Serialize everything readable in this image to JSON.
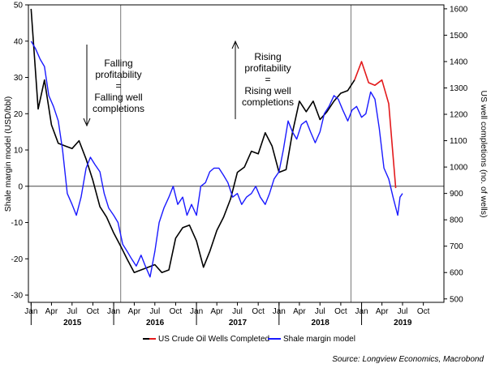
{
  "chart_data": {
    "type": "line",
    "x_range": [
      "2014-12-20",
      "2019-12-31"
    ],
    "y_left": {
      "label": "Shale margin model (USD/bbl)",
      "range": [
        -32,
        50
      ],
      "ticks": [
        -30,
        -20,
        -10,
        0,
        10,
        20,
        30,
        40,
        50
      ]
    },
    "y_right": {
      "label": "US well completions (no. of wells)",
      "range": [
        487,
        1615
      ],
      "ticks": [
        500,
        600,
        700,
        800,
        900,
        1000,
        1100,
        1200,
        1300,
        1400,
        1500,
        1600
      ]
    },
    "month_ticks": [
      "Jan",
      "Apr",
      "Jul",
      "Oct",
      "Jan",
      "Apr",
      "Jul",
      "Oct",
      "Jan",
      "Apr",
      "Jul",
      "Oct",
      "Jan",
      "Apr",
      "Jul",
      "Oct",
      "Jan",
      "Apr",
      "Jul",
      "Oct"
    ],
    "year_labels": [
      "2015",
      "2016",
      "2017",
      "2018",
      "2019"
    ],
    "vertical_markers": [
      "2016-02-01",
      "2018-11-15"
    ],
    "annotations": [
      {
        "lines": [
          "Falling",
          "profitability",
          "=",
          "Falling well",
          "completions"
        ]
      },
      {
        "lines": [
          "Rising",
          "profitability",
          "=",
          "Rising well",
          "completions"
        ]
      }
    ],
    "series": [
      {
        "name": "US Crude Oil Wells Completed",
        "axis": "right",
        "color": "#000000",
        "x": [
          "2015-01-01",
          "2015-02-01",
          "2015-03-01",
          "2015-04-01",
          "2015-05-01",
          "2015-06-01",
          "2015-07-01",
          "2015-08-01",
          "2015-09-01",
          "2015-10-01",
          "2015-11-01",
          "2015-12-01",
          "2016-01-01",
          "2016-02-01",
          "2016-03-01",
          "2016-04-01",
          "2016-05-01",
          "2016-06-01",
          "2016-07-01",
          "2016-08-01",
          "2016-09-01",
          "2016-10-01",
          "2016-11-01",
          "2016-12-01",
          "2017-01-01",
          "2017-02-01",
          "2017-03-01",
          "2017-04-01",
          "2017-05-01",
          "2017-06-01",
          "2017-07-01",
          "2017-08-01",
          "2017-09-01",
          "2017-10-01",
          "2017-11-01",
          "2017-12-01",
          "2018-01-01",
          "2018-02-01",
          "2018-03-01",
          "2018-04-01",
          "2018-05-01",
          "2018-06-01",
          "2018-07-01",
          "2018-08-01",
          "2018-09-01",
          "2018-10-01",
          "2018-11-01",
          "2018-12-01"
        ],
        "y": [
          1600,
          1220,
          1330,
          1160,
          1090,
          1080,
          1070,
          1100,
          1030,
          950,
          850,
          810,
          750,
          700,
          650,
          600,
          610,
          620,
          630,
          600,
          610,
          730,
          770,
          780,
          720,
          620,
          680,
          760,
          810,
          880,
          980,
          1000,
          1060,
          1050,
          1130,
          1080,
          980,
          990,
          1130,
          1250,
          1210,
          1250,
          1180,
          1210,
          1250,
          1280,
          1290,
          1330
        ]
      },
      {
        "name": "US Crude Oil Wells Completed (recent)",
        "axis": "right",
        "color": "#e31a1c",
        "x": [
          "2018-12-01",
          "2019-01-01",
          "2019-02-01",
          "2019-03-01",
          "2019-04-01",
          "2019-05-01",
          "2019-06-01"
        ],
        "y": [
          1330,
          1400,
          1320,
          1310,
          1330,
          1240,
          920
        ]
      },
      {
        "name": "Shale margin model",
        "axis": "left",
        "color": "#1a1aff",
        "x": [
          "2015-01-01",
          "2015-01-20",
          "2015-02-10",
          "2015-03-01",
          "2015-03-20",
          "2015-04-10",
          "2015-05-01",
          "2015-05-20",
          "2015-06-10",
          "2015-07-01",
          "2015-07-20",
          "2015-08-10",
          "2015-09-01",
          "2015-09-20",
          "2015-10-10",
          "2015-11-01",
          "2015-11-20",
          "2015-12-10",
          "2016-01-01",
          "2016-01-20",
          "2016-02-10",
          "2016-03-01",
          "2016-03-20",
          "2016-04-10",
          "2016-05-01",
          "2016-05-20",
          "2016-06-10",
          "2016-07-01",
          "2016-07-20",
          "2016-08-10",
          "2016-09-01",
          "2016-09-20",
          "2016-10-10",
          "2016-11-01",
          "2016-11-20",
          "2016-12-10",
          "2017-01-01",
          "2017-01-20",
          "2017-02-10",
          "2017-03-01",
          "2017-03-20",
          "2017-04-10",
          "2017-05-01",
          "2017-05-20",
          "2017-06-10",
          "2017-07-01",
          "2017-07-20",
          "2017-08-10",
          "2017-09-01",
          "2017-09-20",
          "2017-10-10",
          "2017-11-01",
          "2017-11-20",
          "2017-12-10",
          "2018-01-01",
          "2018-01-20",
          "2018-02-10",
          "2018-03-01",
          "2018-03-20",
          "2018-04-10",
          "2018-05-01",
          "2018-05-20",
          "2018-06-10",
          "2018-07-01",
          "2018-07-20",
          "2018-08-10",
          "2018-09-01",
          "2018-09-20",
          "2018-10-10",
          "2018-11-01",
          "2018-11-20",
          "2018-12-10",
          "2019-01-01",
          "2019-01-20",
          "2019-02-10",
          "2019-03-01",
          "2019-03-20",
          "2019-04-10",
          "2019-05-01",
          "2019-05-20",
          "2019-06-10",
          "2019-06-20",
          "2019-07-01"
        ],
        "y": [
          40,
          38,
          35,
          33,
          25,
          22,
          18,
          10,
          -2,
          -5,
          -8,
          -3,
          5,
          8,
          6,
          4,
          -2,
          -6,
          -8,
          -10,
          -16,
          -18,
          -20,
          -22,
          -19,
          -22,
          -25,
          -18,
          -10,
          -6,
          -3,
          0,
          -5,
          -3,
          -8,
          -5,
          -8,
          0,
          1,
          4,
          5,
          5,
          3,
          1,
          -3,
          -2,
          -5,
          -3,
          -2,
          0,
          -3,
          -5,
          -2,
          2,
          4,
          10,
          18,
          15,
          13,
          17,
          18,
          15,
          12,
          15,
          20,
          22,
          25,
          24,
          21,
          18,
          21,
          22,
          19,
          20,
          26,
          24,
          16,
          5,
          2,
          -3,
          -8,
          -3,
          -2
        ]
      }
    ]
  },
  "legend": {
    "items": [
      {
        "label": "US Crude Oil Wells Completed",
        "colors": [
          "#000000",
          "#e31a1c"
        ]
      },
      {
        "label": "Shale margin model",
        "colors": [
          "#1a1aff"
        ]
      }
    ]
  },
  "source": "Source: Longview Economics, Macrobond"
}
